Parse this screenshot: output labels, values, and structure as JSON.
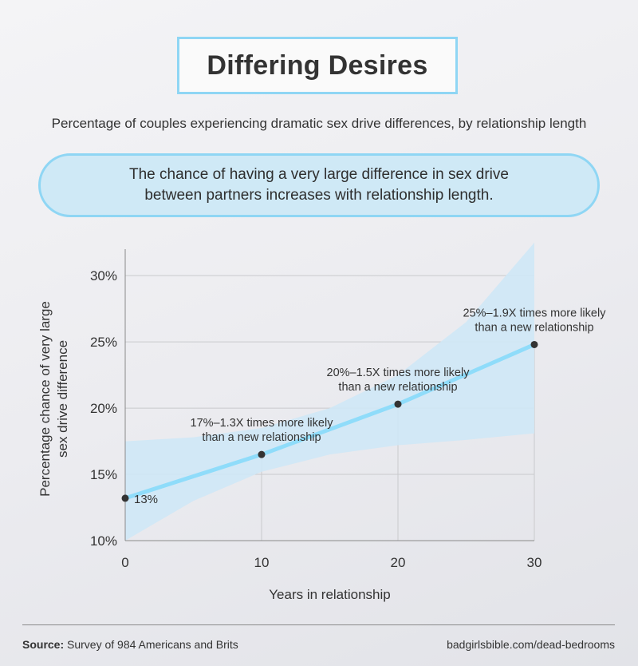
{
  "header": {
    "title": "Differing Desires",
    "subtitle": "Percentage of couples experiencing dramatic sex drive differences, by relationship length",
    "callout_line1": "The chance of having a very large difference in sex drive",
    "callout_line2": "between partners increases with relationship length."
  },
  "chart_data": {
    "type": "line",
    "xlabel": "Years in relationship",
    "ylabel_line1": "Percentage chance of very large",
    "ylabel_line2": "sex drive difference",
    "xlim": [
      0,
      30
    ],
    "ylim": [
      10,
      32
    ],
    "x_ticks": [
      0,
      10,
      20,
      30
    ],
    "y_ticks": [
      10,
      15,
      20,
      25,
      30
    ],
    "y_tick_labels": [
      "10%",
      "15%",
      "20%",
      "25%",
      "30%"
    ],
    "grid": true,
    "series": [
      {
        "x": [
          0,
          10,
          20,
          30
        ],
        "y": [
          13.2,
          16.5,
          20.3,
          24.8
        ]
      }
    ],
    "confidence_band": {
      "x": [
        0,
        5,
        10,
        15,
        20,
        25,
        30
      ],
      "lower": [
        10.0,
        13.0,
        15.2,
        16.5,
        17.2,
        17.6,
        18.1
      ],
      "upper": [
        17.5,
        17.8,
        18.5,
        20.0,
        22.5,
        26.5,
        32.5
      ]
    },
    "annotations": [
      {
        "line1": "13%",
        "line2": ""
      },
      {
        "line1": "17%–1.3X times more likely",
        "line2": "than a new relationship"
      },
      {
        "line1": "20%–1.5X times more likely",
        "line2": "than a new relationship"
      },
      {
        "line1": "25%–1.9X times more likely",
        "line2": "than a new relationship"
      }
    ],
    "colors": {
      "line": "#8fdcfa",
      "band": "#cfe8f6",
      "point": "#333333",
      "grid": "#c9cacd",
      "axis": "#8a8a8a"
    }
  },
  "footer": {
    "source_label": "Source:",
    "source_text": "Survey of 984 Americans and Brits",
    "site": "badgirlsbible.com/dead-bedrooms"
  }
}
